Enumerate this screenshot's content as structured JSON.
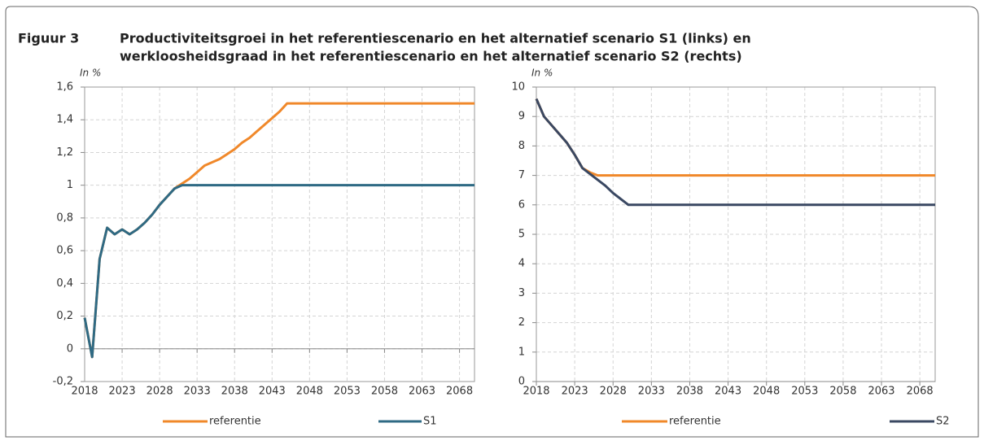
{
  "figure_label": "Figuur 3",
  "title": [
    "Productiviteitsgroei in het referentiescenario en het alternatief scenario S1 (links) en",
    "werkloosheidsgraad in het referentiescenario en het alternatief scenario S2 (rechts)"
  ],
  "chart_data": [
    {
      "type": "line",
      "subtitle": "In %",
      "x": [
        2018,
        2019,
        2020,
        2021,
        2022,
        2023,
        2024,
        2025,
        2026,
        2027,
        2028,
        2029,
        2030,
        2031,
        2032,
        2033,
        2034,
        2035,
        2036,
        2037,
        2038,
        2039,
        2040,
        2041,
        2042,
        2043,
        2044,
        2045,
        2046,
        2047,
        2048,
        2049,
        2050,
        2051,
        2052,
        2053,
        2054,
        2055,
        2056,
        2057,
        2058,
        2059,
        2060,
        2061,
        2062,
        2063,
        2064,
        2065,
        2066,
        2067,
        2068,
        2069,
        2070
      ],
      "xlim": [
        2018,
        2070
      ],
      "xticks": [
        2018,
        2023,
        2028,
        2033,
        2038,
        2043,
        2048,
        2053,
        2058,
        2063,
        2068
      ],
      "ylim": [
        -0.2,
        1.6
      ],
      "yticks": [
        {
          "value": -0.2,
          "label": "-0,2"
        },
        0,
        {
          "value": 0.2,
          "label": "0,2"
        },
        {
          "value": 0.4,
          "label": "0,4"
        },
        {
          "value": 0.6,
          "label": "0,6"
        },
        {
          "value": 0.8,
          "label": "0,8"
        },
        1,
        {
          "value": 1.2,
          "label": "1,2"
        },
        {
          "value": 1.4,
          "label": "1,4"
        },
        {
          "value": 1.6,
          "label": "1,6"
        }
      ],
      "grid": true,
      "series": [
        {
          "name": "referentie",
          "color": "#f0882a",
          "values": [
            0.19,
            -0.05,
            0.55,
            0.74,
            0.7,
            0.73,
            0.7,
            0.73,
            0.77,
            0.82,
            0.88,
            0.93,
            0.98,
            1.01,
            1.04,
            1.08,
            1.12,
            1.14,
            1.16,
            1.19,
            1.22,
            1.26,
            1.29,
            1.33,
            1.37,
            1.41,
            1.45,
            1.5,
            1.5,
            1.5,
            1.5,
            1.5,
            1.5,
            1.5,
            1.5,
            1.5,
            1.5,
            1.5,
            1.5,
            1.5,
            1.5,
            1.5,
            1.5,
            1.5,
            1.5,
            1.5,
            1.5,
            1.5,
            1.5,
            1.5,
            1.5,
            1.5,
            1.5
          ]
        },
        {
          "name": "S1",
          "color": "#2f6a84",
          "values": [
            0.19,
            -0.05,
            0.55,
            0.74,
            0.7,
            0.73,
            0.7,
            0.73,
            0.77,
            0.82,
            0.88,
            0.93,
            0.98,
            1,
            1,
            1,
            1,
            1,
            1,
            1,
            1,
            1,
            1,
            1,
            1,
            1,
            1,
            1,
            1,
            1,
            1,
            1,
            1,
            1,
            1,
            1,
            1,
            1,
            1,
            1,
            1,
            1,
            1,
            1,
            1,
            1,
            1,
            1,
            1,
            1,
            1,
            1,
            1
          ]
        }
      ]
    },
    {
      "type": "line",
      "subtitle": "In %",
      "x": [
        2018,
        2019,
        2020,
        2021,
        2022,
        2023,
        2024,
        2025,
        2026,
        2027,
        2028,
        2029,
        2030,
        2031,
        2032,
        2033,
        2034,
        2035,
        2036,
        2037,
        2038,
        2039,
        2040,
        2041,
        2042,
        2043,
        2044,
        2045,
        2046,
        2047,
        2048,
        2049,
        2050,
        2051,
        2052,
        2053,
        2054,
        2055,
        2056,
        2057,
        2058,
        2059,
        2060,
        2061,
        2062,
        2063,
        2064,
        2065,
        2066,
        2067,
        2068,
        2069,
        2070
      ],
      "xlim": [
        2018,
        2070
      ],
      "xticks": [
        2018,
        2023,
        2028,
        2033,
        2038,
        2043,
        2048,
        2053,
        2058,
        2063,
        2068
      ],
      "ylim": [
        0,
        10
      ],
      "yticks": [
        0,
        1,
        2,
        3,
        4,
        5,
        6,
        7,
        8,
        9,
        10
      ],
      "grid": true,
      "series": [
        {
          "name": "referentie",
          "color": "#f0882a",
          "values": [
            9.6,
            9.0,
            8.7,
            8.4,
            8.1,
            7.7,
            7.25,
            7.1,
            7,
            7,
            7,
            7,
            7,
            7,
            7,
            7,
            7,
            7,
            7,
            7,
            7,
            7,
            7,
            7,
            7,
            7,
            7,
            7,
            7,
            7,
            7,
            7,
            7,
            7,
            7,
            7,
            7,
            7,
            7,
            7,
            7,
            7,
            7,
            7,
            7,
            7,
            7,
            7,
            7,
            7,
            7,
            7,
            7
          ]
        },
        {
          "name": "S2",
          "color": "#3a4862",
          "values": [
            9.6,
            9.0,
            8.7,
            8.4,
            8.1,
            7.7,
            7.25,
            7.05,
            6.85,
            6.65,
            6.4,
            6.2,
            6,
            6,
            6,
            6,
            6,
            6,
            6,
            6,
            6,
            6,
            6,
            6,
            6,
            6,
            6,
            6,
            6,
            6,
            6,
            6,
            6,
            6,
            6,
            6,
            6,
            6,
            6,
            6,
            6,
            6,
            6,
            6,
            6,
            6,
            6,
            6,
            6,
            6,
            6,
            6,
            6
          ]
        }
      ]
    }
  ]
}
